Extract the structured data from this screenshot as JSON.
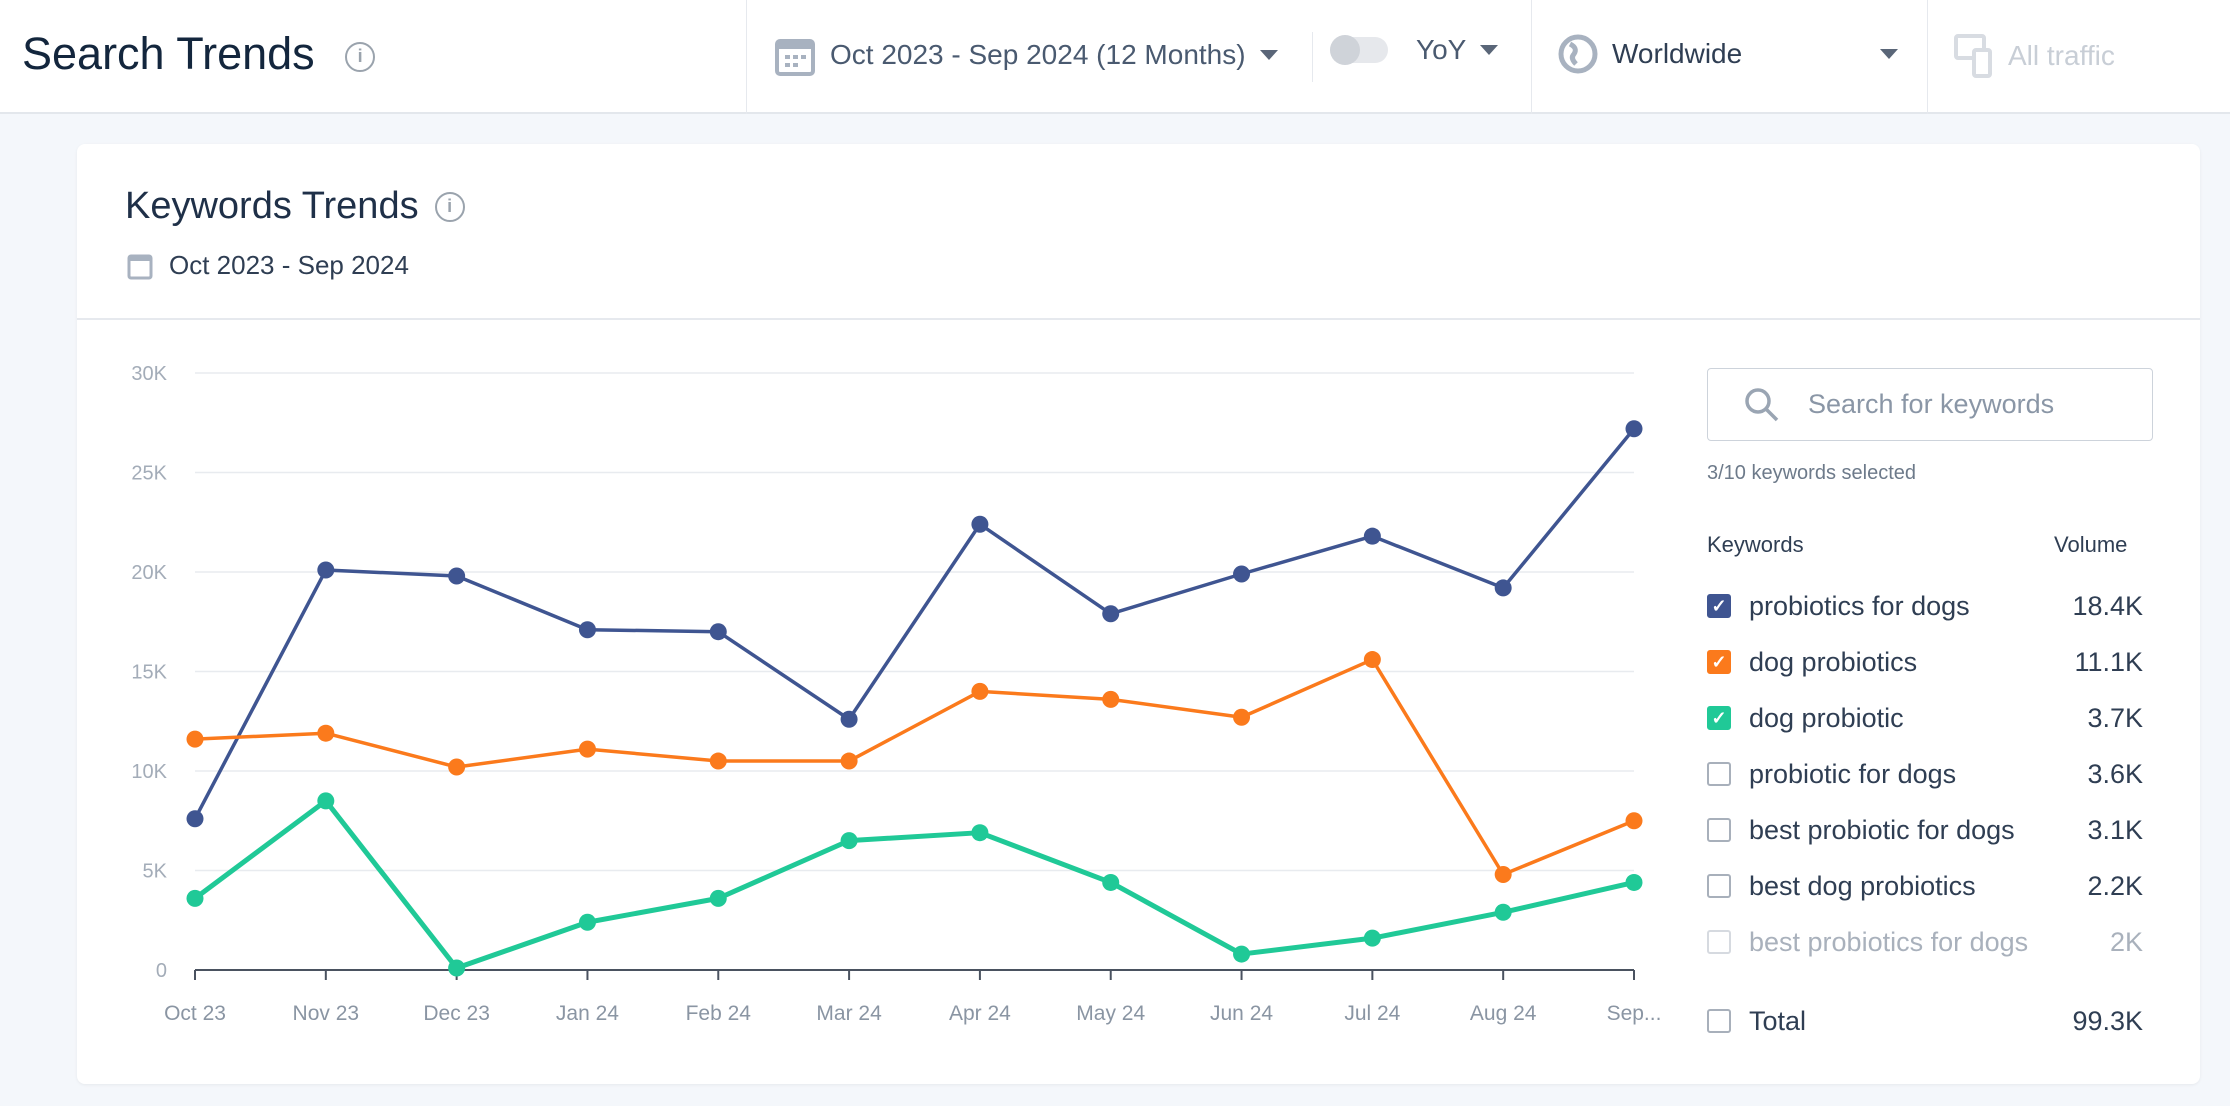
{
  "header": {
    "title": "Search Trends",
    "date_range": "Oct 2023 - Sep 2024 (12 Months)",
    "compare": "YoY",
    "region": "Worldwide",
    "traffic": "All traffic"
  },
  "card": {
    "title": "Keywords Trends",
    "date": "Oct 2023 - Sep 2024"
  },
  "panel": {
    "search_placeholder": "Search for keywords",
    "selected": "3/10 keywords selected",
    "col_keywords": "Keywords",
    "col_volume": "Volume",
    "keywords": [
      {
        "label": "probiotics for dogs",
        "volume": "18.4K",
        "checked": true,
        "color": "#3f5591"
      },
      {
        "label": "dog probiotics",
        "volume": "11.1K",
        "checked": true,
        "color": "#fb7a1c"
      },
      {
        "label": "dog probiotic",
        "volume": "3.7K",
        "checked": true,
        "color": "#20c997"
      },
      {
        "label": "probiotic for dogs",
        "volume": "3.6K",
        "checked": false
      },
      {
        "label": "best probiotic for dogs",
        "volume": "3.1K",
        "checked": false
      },
      {
        "label": "best dog probiotics",
        "volume": "2.2K",
        "checked": false
      },
      {
        "label": "best probiotics for dogs",
        "volume": "2K",
        "checked": false,
        "disabled": true
      }
    ],
    "total_label": "Total",
    "total_volume": "99.3K"
  },
  "chart_data": {
    "type": "line",
    "categories": [
      "Oct 23",
      "Nov 23",
      "Dec 23",
      "Jan 24",
      "Feb 24",
      "Mar 24",
      "Apr 24",
      "May 24",
      "Jun 24",
      "Jul 24",
      "Aug 24",
      "Sep..."
    ],
    "ylim": [
      0,
      30000
    ],
    "yticks": [
      "0",
      "5K",
      "10K",
      "15K",
      "20K",
      "25K",
      "30K"
    ],
    "grid": true,
    "series": [
      {
        "name": "probiotics for dogs",
        "color": "#3f5591",
        "values": [
          7600,
          20100,
          19800,
          17100,
          17000,
          12600,
          22400,
          17900,
          19900,
          21800,
          19200,
          27200
        ]
      },
      {
        "name": "dog probiotics",
        "color": "#fb7a1c",
        "values": [
          11600,
          11900,
          10200,
          11100,
          10500,
          10500,
          14000,
          13600,
          12700,
          15600,
          4800,
          7500
        ]
      },
      {
        "name": "dog probiotic",
        "color": "#20c997",
        "values": [
          3600,
          8500,
          100,
          2400,
          3600,
          6500,
          6900,
          4400,
          800,
          1600,
          2900,
          4400
        ]
      }
    ]
  }
}
